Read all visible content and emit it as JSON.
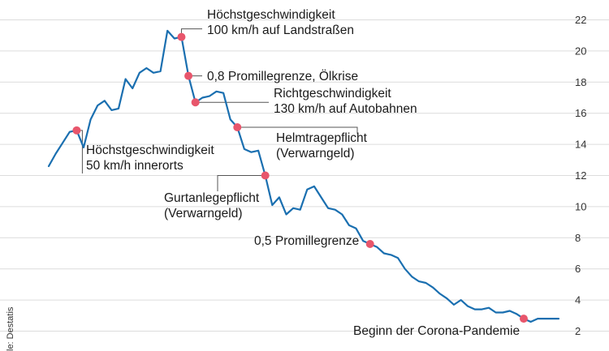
{
  "chart_data": {
    "type": "line",
    "ylim": [
      2,
      22
    ],
    "yticks": [
      2,
      4,
      6,
      8,
      10,
      12,
      14,
      16,
      18,
      20,
      22
    ],
    "grid": true,
    "y_axis_side": "right",
    "colors": {
      "line": "#1a6fb0",
      "marker": "#e8566c"
    },
    "series": [
      {
        "values": [
          12.6,
          13.4,
          14.1,
          14.8,
          14.9,
          13.8,
          15.6,
          16.5,
          16.8,
          16.2,
          16.3,
          18.2,
          17.6,
          18.6,
          18.9,
          18.6,
          18.7,
          21.3,
          20.8,
          20.9,
          18.4,
          16.7,
          17.0,
          17.1,
          17.4,
          17.3,
          15.6,
          15.1,
          13.7,
          13.5,
          13.6,
          12.0,
          10.1,
          10.6,
          9.5,
          9.9,
          9.8,
          11.1,
          11.3,
          10.6,
          9.9,
          9.8,
          9.5,
          8.8,
          8.6,
          7.8,
          7.6,
          7.4,
          7.0,
          6.9,
          6.7,
          6.0,
          5.5,
          5.2,
          5.1,
          4.8,
          4.4,
          4.1,
          3.7,
          4.0,
          3.6,
          3.4,
          3.4,
          3.5,
          3.2,
          3.2,
          3.3,
          3.1,
          2.8,
          2.6,
          2.8,
          2.8,
          2.8,
          2.8
        ]
      }
    ],
    "annotations": [
      {
        "index": 4,
        "lines": [
          "Höchstgeschwindigkeit",
          "50 km/h innerorts"
        ]
      },
      {
        "index": 19,
        "lines": [
          "Höchstgeschwindigkeit",
          "100 km/h auf Landstraßen"
        ]
      },
      {
        "index": 20,
        "lines": [
          "0,8 Promillegrenze, Ölkrise"
        ]
      },
      {
        "index": 21,
        "lines": [
          "Richtgeschwindigkeit",
          "130 km/h auf Autobahnen"
        ]
      },
      {
        "index": 27,
        "lines": [
          "Helmtragepflicht",
          "(Verwarngeld)"
        ]
      },
      {
        "index": 31,
        "lines": [
          "Gurtanlegepflicht",
          "(Verwarngeld)"
        ]
      },
      {
        "index": 46,
        "lines": [
          "0,5 Promillegrenze"
        ]
      },
      {
        "index": 68,
        "lines": [
          "Beginn der Corona-Pandemie"
        ]
      }
    ]
  },
  "source_label": "le: Destatis"
}
